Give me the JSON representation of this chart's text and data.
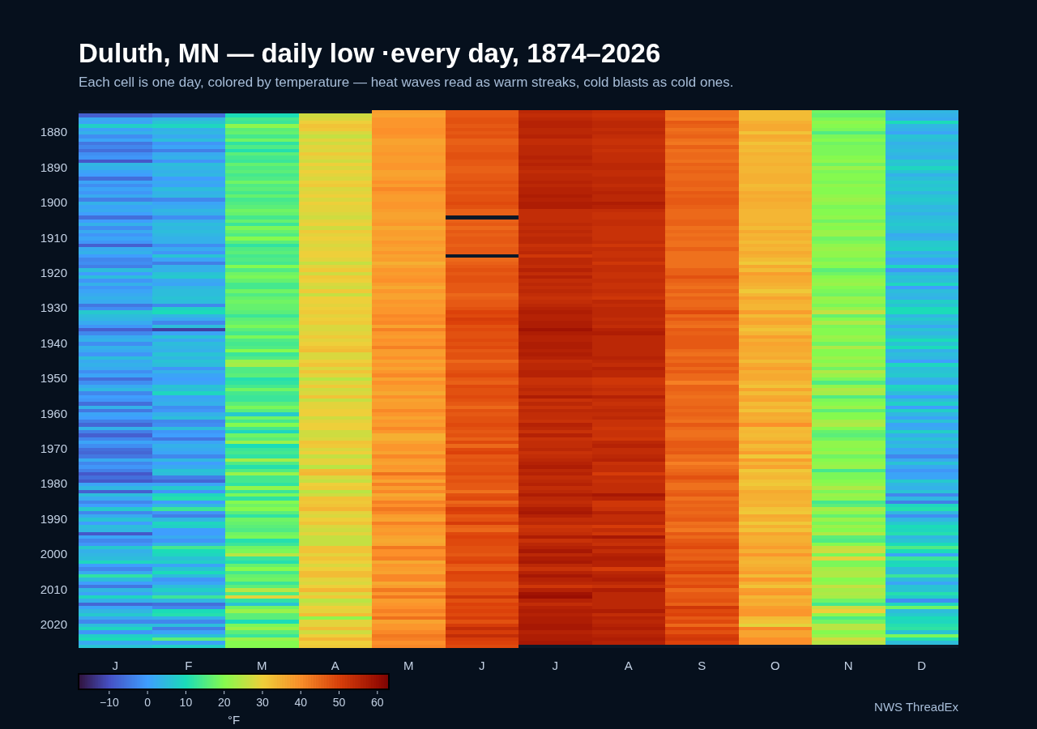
{
  "chart_data": {
    "type": "heatmap",
    "title": "Duluth, MN — daily low ·every day, 1874–2026",
    "subtitle": "Each cell is one day, colored by temperature — heat waves read as warm streaks, cold blasts as cold ones.",
    "clabel": "°F",
    "annotations": [
      "NWS ThreadEx"
    ],
    "categories": [
      "J",
      "F",
      "M",
      "A",
      "M",
      "J",
      "J",
      "A",
      "S",
      "O",
      "N",
      "D"
    ],
    "y_categories": [
      null,
      null,
      null,
      null,
      null,
      null,
      "1880",
      null,
      null,
      null,
      null,
      null,
      null,
      null,
      null,
      null,
      "1890",
      null,
      null,
      null,
      null,
      null,
      null,
      null,
      null,
      null,
      "1900",
      null,
      null,
      null,
      null,
      null,
      null,
      null,
      null,
      null,
      "1910",
      null,
      null,
      null,
      null,
      null,
      null,
      null,
      null,
      null,
      "1920",
      null,
      null,
      null,
      null,
      null,
      null,
      null,
      null,
      null,
      "1930",
      null,
      null,
      null,
      null,
      null,
      null,
      null,
      null,
      null,
      "1940",
      null,
      null,
      null,
      null,
      null,
      null,
      null,
      null,
      null,
      "1950",
      null,
      null,
      null,
      null,
      null,
      null,
      null,
      null,
      null,
      "1960",
      null,
      null,
      null,
      null,
      null,
      null,
      null,
      null,
      null,
      "1970",
      null,
      null,
      null,
      null,
      null,
      null,
      null,
      null,
      null,
      "1980",
      null,
      null,
      null,
      null,
      null,
      null,
      null,
      null,
      null,
      "1990",
      null,
      null,
      null,
      null,
      null,
      null,
      null,
      null,
      null,
      "2000",
      null,
      null,
      null,
      null,
      null,
      null,
      null,
      null,
      null,
      "2010",
      null,
      null,
      null,
      null,
      null,
      null,
      null,
      null,
      null,
      "2020",
      null,
      null,
      null,
      null,
      null,
      null
    ],
    "cells": [
      [
        null,
        null,
        null,
        null,
        38,
        47,
        55,
        54,
        44,
        33,
        18,
        4
      ],
      [
        -8,
        -6,
        10,
        27,
        37,
        47,
        54,
        53,
        44,
        33,
        17,
        3
      ],
      [
        2,
        4,
        14,
        28,
        39,
        48,
        55,
        54,
        43,
        33,
        19,
        2
      ],
      [
        1,
        6,
        13,
        30,
        39,
        48,
        56,
        55,
        47,
        35,
        21,
        10
      ],
      [
        8,
        9,
        21,
        32,
        39,
        47,
        56,
        55,
        46,
        36,
        20,
        4
      ],
      [
        1,
        3,
        16,
        31,
        40,
        48,
        55,
        54,
        44,
        36,
        19,
        3
      ],
      [
        3,
        4,
        17,
        28,
        40,
        47,
        55,
        55,
        45,
        32,
        15,
        1
      ],
      [
        -2,
        2,
        14,
        26,
        39,
        48,
        56,
        54,
        46,
        36,
        19,
        6
      ],
      [
        1,
        5,
        18,
        29,
        37,
        46,
        54,
        53,
        44,
        35,
        20,
        5
      ],
      [
        -5,
        -1,
        12,
        27,
        37,
        46,
        54,
        53,
        43,
        32,
        18,
        3
      ],
      [
        -3,
        1,
        15,
        29,
        38,
        47,
        55,
        54,
        46,
        34,
        19,
        4
      ],
      [
        -6,
        -4,
        11,
        28,
        38,
        47,
        55,
        53,
        44,
        33,
        19,
        5
      ],
      [
        -2,
        2,
        16,
        31,
        39,
        48,
        55,
        54,
        45,
        35,
        19,
        4
      ],
      [
        -1,
        3,
        14,
        29,
        38,
        48,
        56,
        54,
        45,
        34,
        20,
        3
      ],
      [
        -9,
        -1,
        13,
        27,
        38,
        47,
        55,
        54,
        44,
        34,
        21,
        7
      ],
      [
        4,
        5,
        17,
        30,
        39,
        47,
        56,
        55,
        46,
        35,
        18,
        6
      ],
      [
        3,
        4,
        15,
        28,
        39,
        46,
        55,
        55,
        45,
        34,
        22,
        9
      ],
      [
        1,
        3,
        16,
        30,
        37,
        46,
        54,
        54,
        46,
        34,
        19,
        6
      ],
      [
        0,
        4,
        14,
        29,
        37,
        47,
        55,
        54,
        45,
        35,
        20,
        3
      ],
      [
        -6,
        0,
        15,
        28,
        38,
        47,
        55,
        55,
        45,
        35,
        20,
        5
      ],
      [
        1,
        2,
        18,
        30,
        40,
        48,
        56,
        55,
        46,
        35,
        19,
        7
      ],
      [
        -2,
        1,
        15,
        31,
        38,
        47,
        55,
        54,
        46,
        33,
        21,
        6
      ],
      [
        1,
        5,
        16,
        28,
        41,
        48,
        56,
        55,
        45,
        34,
        20,
        7
      ],
      [
        -1,
        3,
        14,
        29,
        39,
        47,
        56,
        56,
        47,
        36,
        20,
        4
      ],
      [
        2,
        4,
        17,
        30,
        38,
        48,
        57,
        55,
        46,
        35,
        21,
        6
      ],
      [
        -4,
        -3,
        14,
        28,
        38,
        48,
        56,
        55,
        47,
        36,
        22,
        7
      ],
      [
        3,
        1,
        15,
        30,
        39,
        49,
        57,
        57,
        47,
        35,
        21,
        6
      ],
      [
        1,
        2,
        16,
        29,
        39,
        48,
        57,
        56,
        46,
        35,
        19,
        4
      ],
      [
        2,
        4,
        18,
        29,
        38,
        46,
        54,
        54,
        45,
        34,
        20,
        5
      ],
      [
        0,
        3,
        17,
        28,
        37,
        46,
        54,
        53,
        45,
        34,
        20,
        3
      ],
      [
        -6,
        -2,
        14,
        27,
        37,
        null,
        54,
        53,
        45,
        34,
        21,
        5
      ],
      [
        0,
        3,
        17,
        29,
        38,
        46,
        54,
        54,
        46,
        34,
        18,
        6
      ],
      [
        3,
        5,
        13,
        30,
        39,
        47,
        55,
        54,
        46,
        35,
        21,
        7
      ],
      [
        -2,
        4,
        19,
        27,
        36,
        45,
        54,
        53,
        44,
        33,
        20,
        6
      ],
      [
        2,
        5,
        17,
        31,
        38,
        47,
        55,
        53,
        45,
        36,
        22,
        5
      ],
      [
        -1,
        4,
        15,
        29,
        38,
        46,
        54,
        53,
        44,
        34,
        22,
        2
      ],
      [
        1,
        3,
        20,
        30,
        37,
        47,
        55,
        53,
        45,
        35,
        18,
        3
      ],
      [
        -1,
        3,
        16,
        29,
        39,
        47,
        55,
        54,
        44,
        33,
        19,
        7
      ],
      [
        -8,
        -2,
        12,
        28,
        38,
        46,
        53,
        52,
        44,
        35,
        21,
        7
      ],
      [
        2,
        2,
        15,
        29,
        37,
        47,
        54,
        54,
        46,
        34,
        22,
        8
      ],
      [
        3,
        -1,
        16,
        30,
        39,
        47,
        55,
        53,
        44,
        36,
        21,
        3
      ],
      [
        0,
        6,
        14,
        30,
        37,
        null,
        52,
        53,
        44,
        35,
        21,
        5
      ],
      [
        -3,
        1,
        15,
        29,
        38,
        45,
        55,
        54,
        44,
        33,
        19,
        1
      ],
      [
        -2,
        -4,
        14,
        26,
        35,
        46,
        55,
        52,
        44,
        31,
        21,
        2
      ],
      [
        -4,
        3,
        20,
        29,
        37,
        47,
        54,
        54,
        44,
        36,
        20,
        9
      ],
      [
        5,
        3,
        15,
        31,
        39,
        48,
        56,
        54,
        46,
        33,
        16,
        -1
      ],
      [
        0,
        6,
        18,
        27,
        38,
        47,
        54,
        53,
        46,
        38,
        18,
        4
      ],
      [
        5,
        7,
        19,
        31,
        39,
        48,
        56,
        53,
        48,
        36,
        20,
        6
      ],
      [
        -1,
        2,
        17,
        30,
        40,
        48,
        54,
        54,
        46,
        36,
        21,
        5
      ],
      [
        3,
        1,
        14,
        28,
        38,
        47,
        55,
        53,
        45,
        35,
        22,
        9
      ],
      [
        -1,
        4,
        14,
        27,
        36,
        47,
        54,
        53,
        44,
        34,
        20,
        0
      ],
      [
        1,
        5,
        18,
        31,
        39,
        47,
        55,
        54,
        46,
        31,
        19,
        5
      ],
      [
        2,
        5,
        15,
        26,
        37,
        45,
        54,
        53,
        44,
        34,
        18,
        4
      ],
      [
        3,
        6,
        17,
        30,
        37,
        46,
        53,
        52,
        46,
        37,
        22,
        3
      ],
      [
        2,
        5,
        18,
        30,
        39,
        47,
        54,
        55,
        45,
        35,
        21,
        8
      ],
      [
        -5,
        -3,
        17,
        29,
        38,
        47,
        55,
        54,
        45,
        34,
        19,
        6
      ],
      [
        -2,
        8,
        17,
        30,
        39,
        48,
        56,
        55,
        46,
        34,
        22,
        10
      ],
      [
        7,
        10,
        16,
        31,
        39,
        50,
        57,
        55,
        49,
        38,
        26,
        10
      ],
      [
        5,
        4,
        13,
        29,
        41,
        49,
        56,
        55,
        45,
        33,
        17,
        4
      ],
      [
        4,
        2,
        16,
        30,
        40,
        51,
        56,
        54,
        47,
        36,
        20,
        7
      ],
      [
        2,
        -3,
        17,
        31,
        41,
        50,
        57,
        55,
        45,
        37,
        24,
        5
      ],
      [
        -1,
        5,
        19,
        28,
        37,
        48,
        57,
        54,
        44,
        34,
        19,
        2
      ],
      [
        -8,
        -12,
        16,
        28,
        42,
        49,
        59,
        56,
        47,
        32,
        20,
        6
      ],
      [
        -3,
        1,
        14,
        29,
        39,
        48,
        57,
        57,
        46,
        34,
        20,
        4
      ],
      [
        2,
        6,
        19,
        31,
        38,
        48,
        56,
        55,
        47,
        38,
        22,
        6
      ],
      [
        3,
        2,
        15,
        29,
        40,
        49,
        56,
        55,
        47,
        35,
        21,
        10
      ],
      [
        -2,
        5,
        14,
        30,
        39,
        48,
        57,
        55,
        47,
        37,
        18,
        6
      ],
      [
        3,
        4,
        15,
        32,
        42,
        49,
        57,
        55,
        47,
        36,
        24,
        10
      ],
      [
        2,
        3,
        20,
        33,
        38,
        47,
        56,
        55,
        45,
        36,
        20,
        3
      ],
      [
        -1,
        6,
        13,
        28,
        38,
        48,
        57,
        55,
        44,
        35,
        20,
        5
      ],
      [
        5,
        4,
        15,
        28,
        40,
        48,
        56,
        56,
        46,
        36,
        22,
        4
      ],
      [
        2,
        6,
        22,
        30,
        37,
        45,
        54,
        55,
        45,
        33,
        20,
        0
      ],
      [
        3,
        5,
        23,
        32,
        39,
        47,
        55,
        54,
        47,
        36,
        22,
        9
      ],
      [
        2,
        -1,
        15,
        28,
        37,
        47,
        55,
        56,
        45,
        38,
        18,
        5
      ],
      [
        -2,
        3,
        15,
        32,
        39,
        48,
        56,
        55,
        47,
        35,
        24,
        6
      ],
      [
        1,
        1,
        16,
        29,
        41,
        49,
        56,
        55,
        45,
        36,
        22,
        7
      ],
      [
        -6,
        0,
        11,
        25,
        37,
        47,
        53,
        52,
        45,
        36,
        19,
        3
      ],
      [
        -2,
        1,
        12,
        28,
        40,
        46,
        53,
        52,
        42,
        34,
        15,
        2
      ],
      [
        2,
        6,
        14,
        31,
        38,
        49,
        54,
        53,
        46,
        32,
        21,
        9
      ],
      [
        4,
        5,
        18,
        27,
        38,
        48,
        55,
        54,
        46,
        37,
        24,
        8
      ],
      [
        -3,
        9,
        14,
        28,
        36,
        48,
        54,
        53,
        45,
        33,
        23,
        5
      ],
      [
        0,
        1,
        13,
        32,
        40,
        49,
        57,
        56,
        44,
        36,
        15,
        0
      ],
      [
        -1,
        2,
        13,
        26,
        37,
        48,
        53,
        54,
        45,
        37,
        19,
        5
      ],
      [
        -6,
        3,
        16,
        29,
        38,
        47,
        55,
        53,
        45,
        33,
        20,
        8
      ],
      [
        3,
        -2,
        19,
        29,
        38,
        45,
        53,
        54,
        46,
        35,
        22,
        0
      ],
      [
        -5,
        -1,
        16,
        30,
        41,
        48,
        55,
        55,
        45,
        32,
        16,
        8
      ],
      [
        1,
        3,
        7,
        30,
        39,
        47,
        54,
        54,
        46,
        36,
        20,
        4
      ],
      [
        0,
        5,
        18,
        27,
        37,
        48,
        54,
        55,
        45,
        35,
        20,
        1
      ],
      [
        -4,
        -3,
        14,
        29,
        39,
        48,
        53,
        53,
        44,
        36,
        23,
        6
      ],
      [
        -7,
        -2,
        20,
        30,
        38,
        49,
        56,
        53,
        47,
        40,
        24,
        1
      ],
      [
        3,
        5,
        14,
        30,
        41,
        48,
        55,
        52,
        45,
        33,
        20,
        2
      ],
      [
        -4,
        -1,
        9,
        27,
        39,
        47,
        53,
        53,
        44,
        34,
        17,
        8
      ],
      [
        -8,
        0,
        18,
        27,
        35,
        48,
        56,
        53,
        44,
        33,
        16,
        3
      ],
      [
        -3,
        -5,
        16,
        28,
        35,
        46,
        53,
        52,
        45,
        34,
        18,
        6
      ],
      [
        1,
        1,
        22,
        32,
        37,
        49,
        54,
        55,
        47,
        37,
        21,
        3
      ],
      [
        -2,
        3,
        10,
        31,
        39,
        45,
        54,
        56,
        47,
        33,
        21,
        5
      ],
      [
        -6,
        2,
        13,
        28,
        39,
        49,
        55,
        54,
        46,
        35,
        20,
        1
      ],
      [
        -7,
        1,
        14,
        30,
        37,
        50,
        53,
        54,
        47,
        38,
        22,
        2
      ],
      [
        -5,
        -3,
        12,
        26,
        41,
        47,
        54,
        55,
        44,
        31,
        18,
        -3
      ],
      [
        2,
        4,
        23,
        29,
        38,
        48,
        55,
        56,
        45,
        38,
        20,
        2
      ],
      [
        -3,
        0,
        15,
        29,
        37,
        47,
        56,
        53,
        42,
        34,
        21,
        6
      ],
      [
        -1,
        2,
        11,
        25,
        39,
        48,
        57,
        54,
        44,
        37,
        22,
        2
      ],
      [
        -4,
        6,
        15,
        33,
        38,
        48,
        55,
        54,
        45,
        31,
        14,
        -1
      ],
      [
        -9,
        5,
        22,
        34,
        44,
        49,
        56,
        51,
        46,
        33,
        19,
        1
      ],
      [
        -6,
        -4,
        14,
        28,
        40,
        47,
        54,
        54,
        48,
        34,
        19,
        1
      ],
      [
        -9,
        -7,
        14,
        26,
        37,
        48,
        55,
        53,
        46,
        32,
        20,
        7
      ],
      [
        1,
        1,
        12,
        30,
        42,
        47,
        56,
        54,
        44,
        31,
        21,
        4
      ],
      [
        4,
        7,
        21,
        31,
        38,
        47,
        54,
        54,
        44,
        33,
        24,
        3
      ],
      [
        -8,
        -1,
        13,
        25,
        41,
        44,
        55,
        54,
        46,
        36,
        19,
        6
      ],
      [
        5,
        9,
        19,
        27,
        36,
        48,
        57,
        58,
        47,
        35,
        22,
        -3
      ],
      [
        2,
        11,
        12,
        32,
        38,
        49,
        55,
        56,
        44,
        35,
        21,
        4
      ],
      [
        -3,
        0,
        20,
        31,
        42,
        45,
        54,
        52,
        46,
        34,
        14,
        -4
      ],
      [
        0,
        4,
        18,
        32,
        40,
        47,
        55,
        52,
        45,
        35,
        16,
        9
      ],
      [
        7,
        13,
        20,
        34,
        43,
        51,
        57,
        53,
        46,
        32,
        23,
        11
      ],
      [
        -3,
        -1,
        16,
        29,
        41,
        50,
        58,
        56,
        45,
        31,
        21,
        4
      ],
      [
        2,
        -4,
        12,
        28,
        38,
        47,
        56,
        54,
        46,
        36,
        17,
        -2
      ],
      [
        6,
        4,
        18,
        30,
        37,
        48,
        54,
        54,
        47,
        35,
        22,
        4
      ],
      [
        0,
        9,
        17,
        32,
        42,
        51,
        55,
        55,
        44,
        31,
        19,
        7
      ],
      [
        5,
        8,
        16,
        28,
        39,
        46,
        52,
        51,
        45,
        35,
        22,
        10
      ],
      [
        4,
        0,
        15,
        27,
        38,
        45,
        53,
        54,
        43,
        32,
        20,
        9
      ],
      [
        -9,
        0,
        18,
        29,
        39,
        49,
        54,
        52,
        47,
        37,
        24,
        11
      ],
      [
        1,
        2,
        19,
        26,
        37,
        50,
        57,
        58,
        45,
        35,
        16,
        4
      ],
      [
        -3,
        -1,
        11,
        26,
        36,
        49,
        53,
        54,
        47,
        35,
        15,
        6
      ],
      [
        -1,
        4,
        13,
        26,
        37,
        49,
        55,
        53,
        48,
        36,
        20,
        10
      ],
      [
        7,
        14,
        18,
        32,
        43,
        48,
        56,
        56,
        49,
        38,
        26,
        15
      ],
      [
        3,
        10,
        19,
        32,
        40,
        48,
        58,
        54,
        46,
        35,
        27,
        10
      ],
      [
        4,
        9,
        25,
        29,
        40,
        47,
        55,
        56,
        47,
        39,
        19,
        1
      ],
      [
        5,
        6,
        13,
        32,
        42,
        49,
        57,
        57,
        46,
        35,
        29,
        13
      ],
      [
        9,
        8,
        11,
        30,
        36,
        50,
        58,
        56,
        49,
        34,
        19,
        9
      ],
      [
        0,
        1,
        17,
        28,
        39,
        47,
        55,
        56,
        47,
        35,
        19,
        10
      ],
      [
        -3,
        6,
        20,
        30,
        38,
        46,
        53,
        51,
        48,
        36,
        23,
        5
      ],
      [
        2,
        10,
        14,
        33,
        37,
        50,
        56,
        55,
        50,
        38,
        24,
        5
      ],
      [
        12,
        5,
        17,
        33,
        41,
        49,
        58,
        56,
        46,
        33,
        24,
        13
      ],
      [
        5,
        -1,
        18,
        29,
        41,
        49,
        56,
        57,
        48,
        39,
        20,
        5
      ],
      [
        0,
        1,
        13,
        28,
        36,
        47,
        55,
        55,
        47,
        35,
        21,
        1
      ],
      [
        -5,
        5,
        16,
        30,
        38,
        47,
        52,
        53,
        49,
        32,
        26,
        6
      ],
      [
        4,
        8,
        25,
        34,
        43,
        49,
        56,
        57,
        45,
        38,
        23,
        6
      ],
      [
        1,
        5,
        15,
        28,
        39,
        48,
        59,
        55,
        47,
        39,
        24,
        11
      ],
      [
        9,
        13,
        29,
        31,
        43,
        52,
        60,
        55,
        47,
        34,
        23,
        8
      ],
      [
        3,
        4,
        12,
        25,
        38,
        48,
        56,
        55,
        48,
        36,
        18,
        -2
      ],
      [
        -7,
        -6,
        6,
        27,
        39,
        50,
        54,
        55,
        46,
        35,
        14,
        9
      ],
      [
        1,
        -3,
        18,
        30,
        40,
        49,
        56,
        55,
        52,
        38,
        27,
        18
      ],
      [
        4,
        10,
        22,
        29,
        42,
        50,
        57,
        57,
        49,
        39,
        30,
        5
      ],
      [
        7,
        11,
        16,
        33,
        40,
        49,
        56,
        54,
        50,
        39,
        21,
        7
      ],
      [
        2,
        3,
        16,
        21,
        44,
        51,
        57,
        56,
        47,
        33,
        15,
        10
      ],
      [
        -3,
        -3,
        10,
        29,
        37,
        48,
        57,
        55,
        49,
        32,
        18,
        9
      ],
      [
        5,
        5,
        19,
        29,
        39,
        51,
        58,
        56,
        45,
        29,
        25,
        11
      ],
      [
        9,
        -4,
        22,
        33,
        39,
        54,
        58,
        57,
        50,
        41,
        25,
        12
      ],
      [
        -1,
        1,
        16,
        27,
        41,
        51,
        56,
        55,
        48,
        37,
        20,
        6
      ],
      [
        8,
        6,
        13,
        30,
        43,
        54,
        57,
        56,
        51,
        37,
        22,
        19
      ],
      [
        10,
        16,
        22,
        34,
        42,
        51,
        57,
        57,
        52,
        40,
        27,
        11
      ],
      [
        2,
        1,
        20,
        30,
        40,
        50,
        58,
        56,
        50,
        40,
        25,
        5
      ],
      [
        6,
        8,
        20,
        31,
        41,
        49,
        null,
        null,
        null,
        null,
        null,
        null
      ]
    ],
    "clim": [
      -18,
      63
    ],
    "cticks": [
      {
        "value": -10,
        "label": "−10"
      },
      0,
      10,
      20,
      30,
      40,
      50,
      60
    ]
  }
}
